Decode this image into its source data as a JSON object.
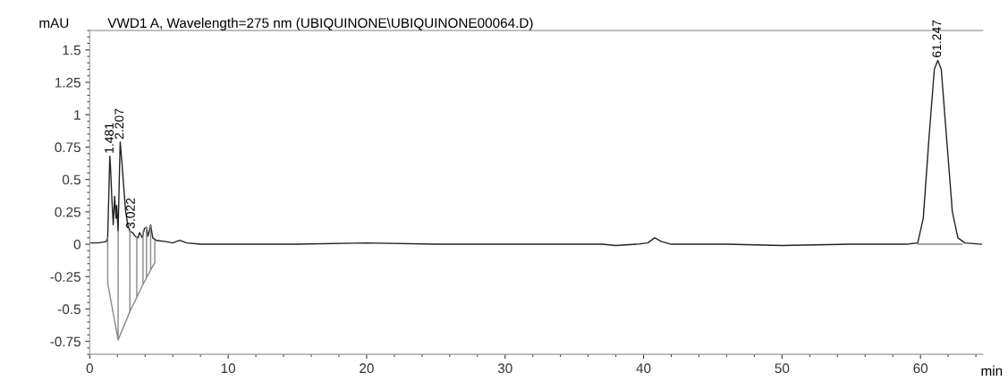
{
  "chart_data": {
    "type": "line",
    "title": "VWD1 A, Wavelength=275 nm (UBIQUINONE\\UBIQUINONE00064.D)",
    "ylabel": "mAU",
    "xlabel": "min",
    "xlim": [
      0,
      64.5
    ],
    "ylim": [
      -0.85,
      1.65
    ],
    "xticks": [
      0,
      10,
      20,
      30,
      40,
      50,
      60
    ],
    "yticks": [
      -0.75,
      -0.5,
      -0.25,
      0,
      0.25,
      0.5,
      0.75,
      1,
      1.25,
      1.5
    ],
    "grid": false,
    "legend": false,
    "marker": "none",
    "line_style": "solid",
    "series": [
      {
        "color": "#222222",
        "x": [
          0,
          0.6,
          1.2,
          1.3,
          1.45,
          1.5,
          1.6,
          1.7,
          1.8,
          1.9,
          1.95,
          2.05,
          2.2,
          2.35,
          2.45,
          2.6,
          2.75,
          2.9,
          3.1,
          3.3,
          3.5,
          3.6,
          3.8,
          3.95,
          4.1,
          4.2,
          4.4,
          4.55,
          4.8,
          5.5,
          6,
          6.5,
          7,
          8,
          12,
          15,
          20,
          25,
          30,
          35,
          37,
          38,
          39.5,
          40.3,
          40.8,
          41.3,
          42,
          46,
          50,
          55,
          59,
          59.8,
          60.2,
          60.6,
          61.0,
          61.25,
          61.5,
          61.9,
          62.3,
          62.7,
          63.2,
          64.4
        ],
        "values": [
          0.01,
          0.01,
          0.02,
          0.05,
          0.68,
          0.6,
          0.35,
          0.15,
          0.37,
          0.2,
          0.3,
          0.1,
          0.79,
          0.6,
          0.45,
          0.25,
          0.15,
          0.1,
          0.09,
          0.06,
          0.05,
          0.09,
          0.05,
          0.12,
          0.13,
          0.06,
          0.15,
          0.05,
          0.03,
          0.02,
          0.01,
          0.03,
          0.01,
          0,
          0,
          0,
          0.01,
          0,
          0,
          0,
          0,
          -0.01,
          0,
          0.01,
          0.05,
          0.02,
          0,
          0,
          -0.01,
          0,
          0,
          0.01,
          0.2,
          0.8,
          1.35,
          1.42,
          1.35,
          0.8,
          0.25,
          0.05,
          0.01,
          0
        ]
      },
      {
        "color": "#888888",
        "x": [
          1.3,
          1.3,
          2.05,
          2.05,
          2.05,
          2.9,
          2.9,
          2.9,
          3.4,
          3.4,
          3.4,
          3.85,
          3.85,
          3.85,
          4.1,
          4.1,
          4.1,
          4.4,
          4.4,
          4.4,
          4.7,
          4.7,
          null,
          59.8,
          63
        ],
        "values": [
          0.05,
          -0.3,
          -0.74,
          0.1,
          -0.74,
          -0.52,
          0.1,
          -0.52,
          -0.41,
          0.06,
          -0.41,
          -0.31,
          0.1,
          -0.31,
          -0.26,
          0.13,
          -0.26,
          -0.2,
          0.14,
          -0.2,
          -0.14,
          0.03,
          null,
          0,
          0
        ]
      }
    ],
    "annotations": [
      {
        "text": "1.481",
        "x": 1.481,
        "y": 0.68
      },
      {
        "text": "2.207",
        "x": 2.207,
        "y": 0.79
      },
      {
        "text": "3.022",
        "x": 3.022,
        "y": 0.1
      },
      {
        "text": "61.247",
        "x": 61.247,
        "y": 1.42
      }
    ]
  }
}
